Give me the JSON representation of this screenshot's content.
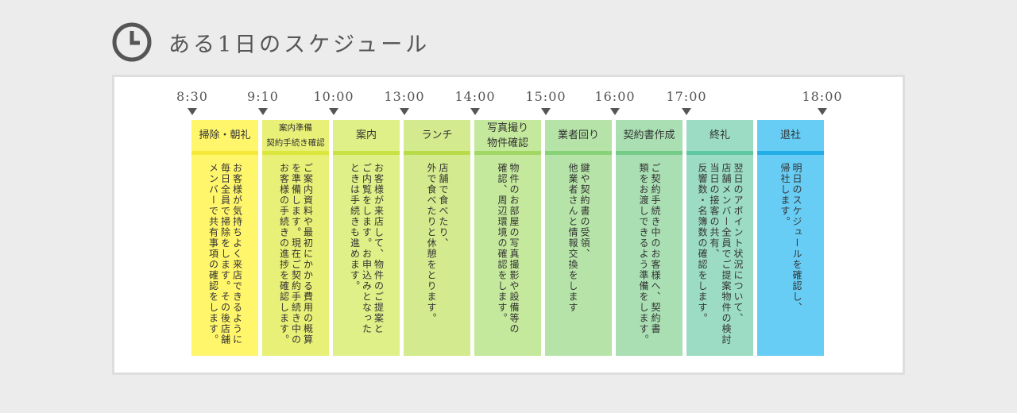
{
  "header": {
    "title": "ある1日のスケジュール",
    "icon": "clock-icon",
    "color": "#555555"
  },
  "times": [
    "8:30",
    "9:10",
    "10:00",
    "13:00",
    "14:00",
    "15:00",
    "16:00",
    "17:00",
    "18:00"
  ],
  "events": [
    {
      "title": [
        "掃除・朝礼"
      ],
      "desc": "お客様が気持ちよく来店できるように\n毎日全員で掃除をします。その後店舗\nメンバーで共有事項の確認をします。",
      "bg": "#fff66c",
      "bar": "#f6e83a"
    },
    {
      "title": [
        "案内準備",
        "契約手続き確認"
      ],
      "desc": "ご案内資料や最初にかかる費用の概算\nを準備します。現在ご契約手続き中の\nお客様の手続きの進捗を確認します。",
      "bg": "#e9f077",
      "bar": "#dbe73c"
    },
    {
      "title": [
        "案内"
      ],
      "desc": "お客様が来店して、物件のご提案と\nご内覧をします。お申込みとなった\nときは手続きも進めます。",
      "bg": "#def087",
      "bar": "#c9e142"
    },
    {
      "title": [
        "ランチ"
      ],
      "desc": "店舗で食べたり、\n外で食べたりと休憩をとります。",
      "bg": "#d3eb8e",
      "bar": "#b8dc48"
    },
    {
      "title": [
        "写真撮り",
        "物件確認"
      ],
      "desc": "物件のお部屋の写真撮影や設備等の\n確認、周辺環境の確認をします。",
      "bg": "#c4e89c",
      "bar": "#a1d764"
    },
    {
      "title": [
        "業者回り"
      ],
      "desc": "鍵や契約書の受領、\n他業者さんと情報交換をします",
      "bg": "#b6e4a8",
      "bar": "#87d277"
    },
    {
      "title": [
        "契約書作成"
      ],
      "desc": "ご契約手続き中のお客様へ、契約書\n類をお渡しできるよう準備をします。",
      "bg": "#a9dfb3",
      "bar": "#74cc88"
    },
    {
      "title": [
        "終礼"
      ],
      "desc": "翌日のアポイント状況について、\n店舗メンバー全員でご提案物件の検討\n当日の接客の共有、\n反響数・名簿数の確認をします。",
      "bg": "#9cdcc5",
      "bar": "#5ec8a2"
    },
    {
      "title": [
        "退社"
      ],
      "desc": "明日のスケジュールを確認し、\n帰社します。",
      "bg": "#67cdf5",
      "bar": "#23aee8"
    }
  ]
}
